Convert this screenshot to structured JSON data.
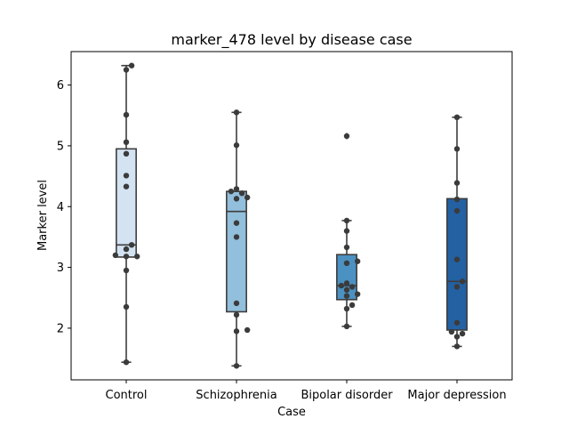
{
  "chart_data": {
    "type": "box",
    "title": "marker_478 level by disease case",
    "xlabel": "Case",
    "ylabel": "Marker level",
    "ylim": [
      1.15,
      6.55
    ],
    "yticks": [
      2,
      3,
      4,
      5,
      6
    ],
    "categories": [
      "Control",
      "Schizophrenia",
      "Bipolar disorder",
      "Major depression"
    ],
    "colors": [
      "#d3e3f2",
      "#92bfdb",
      "#4b91c2",
      "#2361a3"
    ],
    "boxes": [
      {
        "category": "Control",
        "whisker_low": 1.44,
        "q1": 3.17,
        "median": 3.37,
        "q3": 4.95,
        "whisker_high": 6.32,
        "outliers": []
      },
      {
        "category": "Schizophrenia",
        "whisker_low": 1.38,
        "q1": 2.27,
        "median": 3.92,
        "q3": 4.25,
        "whisker_high": 5.55,
        "outliers": []
      },
      {
        "category": "Bipolar disorder",
        "whisker_low": 2.03,
        "q1": 2.47,
        "median": 2.7,
        "q3": 3.21,
        "whisker_high": 3.77,
        "outliers": [
          5.16
        ]
      },
      {
        "category": "Major depression",
        "whisker_low": 1.7,
        "q1": 1.97,
        "median": 2.77,
        "q3": 4.13,
        "whisker_high": 5.47,
        "outliers": []
      }
    ],
    "points": [
      [
        6.32,
        6.25,
        5.51,
        5.06,
        4.87,
        4.51,
        4.33,
        3.37,
        3.3,
        3.2,
        3.18,
        3.18,
        2.95,
        2.35,
        1.44
      ],
      [
        5.55,
        5.01,
        4.29,
        4.25,
        4.22,
        4.15,
        4.13,
        3.73,
        3.5,
        2.41,
        2.22,
        1.97,
        1.95,
        1.38
      ],
      [
        5.16,
        3.77,
        3.6,
        3.33,
        3.1,
        3.07,
        2.74,
        2.7,
        2.68,
        2.63,
        2.56,
        2.53,
        2.38,
        2.32,
        2.03
      ],
      [
        5.47,
        4.95,
        4.39,
        4.12,
        3.93,
        3.13,
        2.77,
        2.68,
        2.09,
        1.94,
        1.91,
        1.86,
        1.7
      ]
    ]
  }
}
